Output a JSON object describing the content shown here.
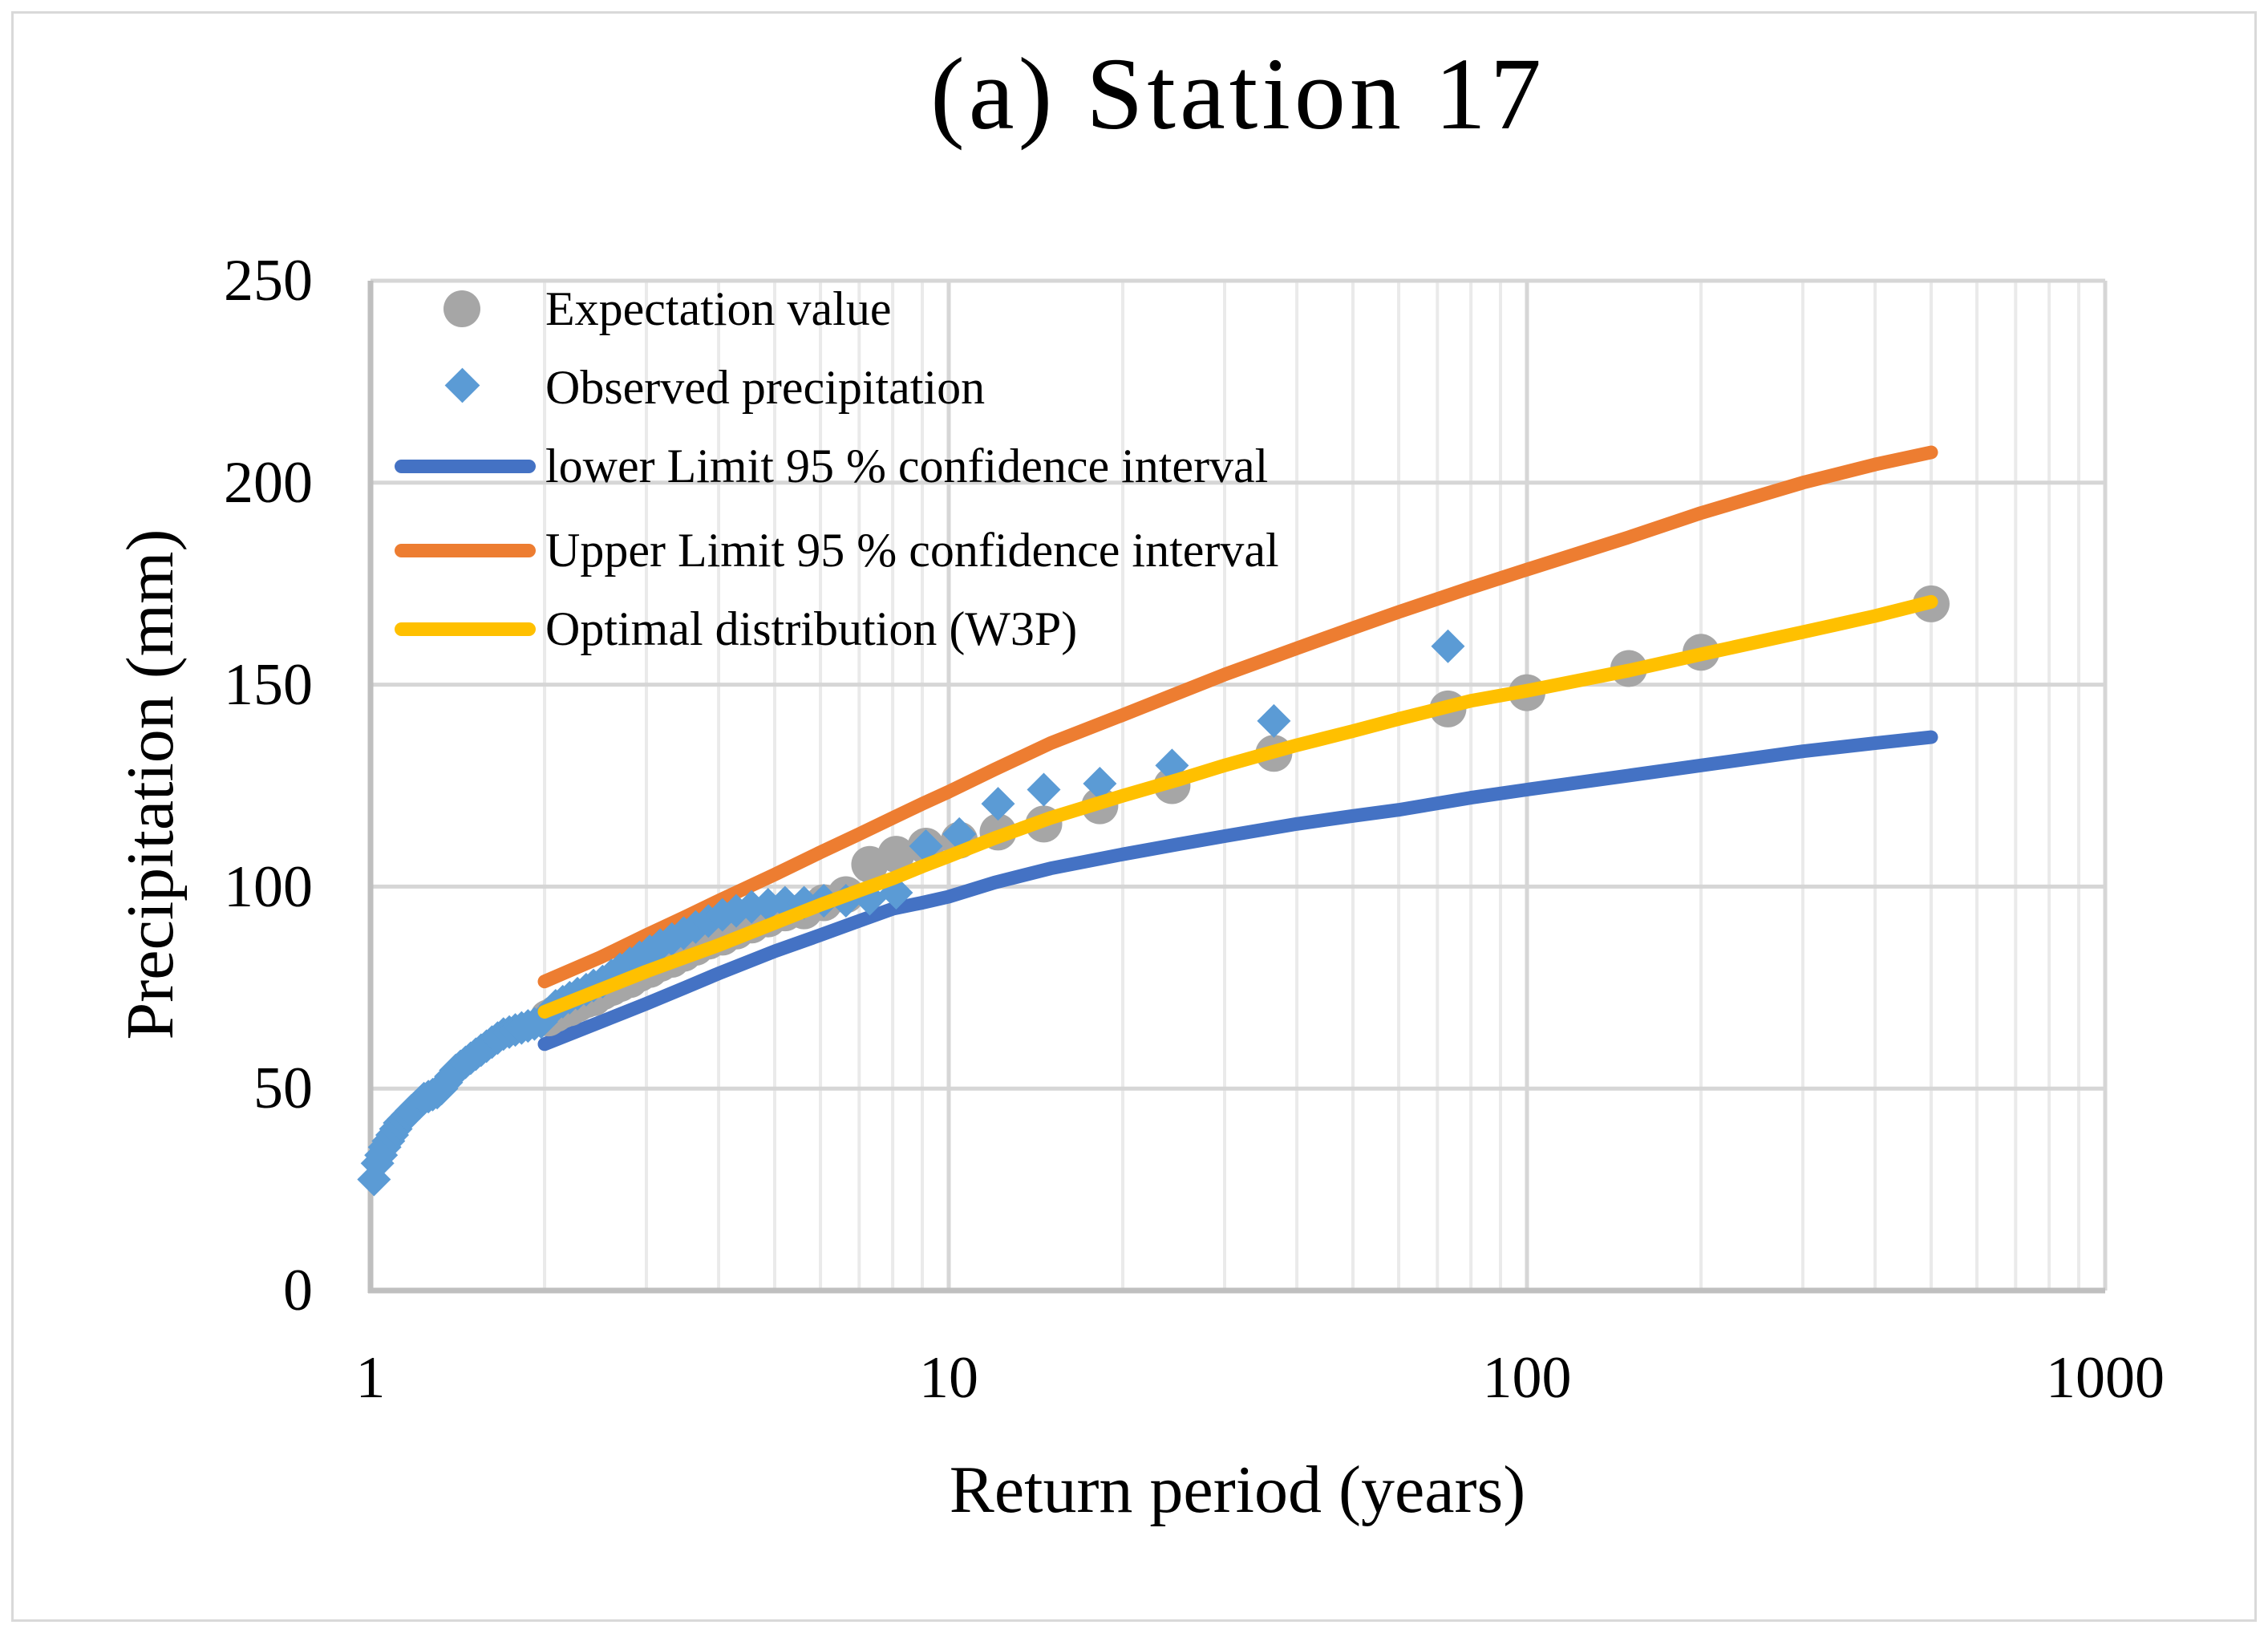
{
  "title": "(a) Station 17",
  "axes": {
    "x_label": "Return period (years)",
    "y_label": "Precipitation (mm)"
  },
  "legend": {
    "items": [
      {
        "label": "Expectation value",
        "marker": "circle",
        "color": "#A6A6A6"
      },
      {
        "label": "Observed precipitation",
        "marker": "diamond",
        "color": "#5B9BD5"
      },
      {
        "label": "lower Limit 95 % confidence interval",
        "marker": "line",
        "color": "#4472C4"
      },
      {
        "label": "Upper Limit 95 % confidence interval",
        "marker": "line",
        "color": "#ED7D31"
      },
      {
        "label": "Optimal distribution (W3P)",
        "marker": "line",
        "color": "#FFC000"
      }
    ]
  },
  "colors": {
    "grid_minor": "#EAEAEA",
    "grid_major": "#D6D6D6",
    "axis": "#BFBFBF",
    "text": "#000000"
  },
  "chart_data": {
    "type": "line",
    "title": "(a) Station 17",
    "xlabel": "Return period (years)",
    "ylabel": "Precipitation (mm)",
    "x_scale": "log",
    "xlim": [
      1,
      1000
    ],
    "ylim": [
      0,
      250
    ],
    "x_tick_labels": [
      "1",
      "10",
      "100",
      "1000"
    ],
    "y_tick_labels_desc": [
      "250",
      "200",
      "150",
      "100",
      "50",
      "0"
    ],
    "grid": "on",
    "legend_position": "upper-left-inside",
    "series": [
      {
        "name": "lower Limit 95 % confidence interval",
        "type": "line",
        "color": "#4472C4",
        "points": [
          [
            2,
            61
          ],
          [
            2.5,
            66.5
          ],
          [
            3,
            71
          ],
          [
            3.5,
            75
          ],
          [
            4,
            78.5
          ],
          [
            5,
            84
          ],
          [
            6,
            88
          ],
          [
            7,
            91.5
          ],
          [
            8,
            94.5
          ],
          [
            9,
            96
          ],
          [
            10,
            97.5
          ],
          [
            12,
            101
          ],
          [
            15,
            104.5
          ],
          [
            20,
            108
          ],
          [
            25,
            110.5
          ],
          [
            30,
            112.5
          ],
          [
            40,
            115.5
          ],
          [
            50,
            117.5
          ],
          [
            60,
            119
          ],
          [
            80,
            122
          ],
          [
            100,
            124
          ],
          [
            150,
            127.5
          ],
          [
            200,
            130
          ],
          [
            300,
            133.5
          ],
          [
            400,
            135.5
          ],
          [
            500,
            137
          ]
        ]
      },
      {
        "name": "Upper Limit 95 % confidence interval",
        "type": "line",
        "color": "#ED7D31",
        "points": [
          [
            2,
            76.5
          ],
          [
            2.5,
            82.5
          ],
          [
            3,
            88
          ],
          [
            3.5,
            92.5
          ],
          [
            4,
            96.5
          ],
          [
            5,
            103
          ],
          [
            6,
            108.5
          ],
          [
            7,
            113
          ],
          [
            8,
            117
          ],
          [
            9,
            120.5
          ],
          [
            10,
            123.5
          ],
          [
            12,
            129
          ],
          [
            15,
            135.5
          ],
          [
            20,
            142.5
          ],
          [
            25,
            148
          ],
          [
            30,
            152.5
          ],
          [
            40,
            159
          ],
          [
            50,
            164
          ],
          [
            60,
            168
          ],
          [
            80,
            174
          ],
          [
            100,
            178.5
          ],
          [
            150,
            186.5
          ],
          [
            200,
            192.5
          ],
          [
            300,
            200
          ],
          [
            400,
            204.5
          ],
          [
            500,
            207.5
          ]
        ]
      },
      {
        "name": "Expectation value",
        "type": "scatter",
        "marker": "circle",
        "color": "#A6A6A6",
        "points": [
          [
            2.03,
            67.5
          ],
          [
            2.09,
            68.5
          ],
          [
            2.15,
            69.5
          ],
          [
            2.21,
            70
          ],
          [
            2.28,
            71
          ],
          [
            2.36,
            72
          ],
          [
            2.43,
            72.5
          ],
          [
            2.52,
            74
          ],
          [
            2.61,
            75
          ],
          [
            2.7,
            76
          ],
          [
            2.81,
            77
          ],
          [
            2.92,
            78.5
          ],
          [
            3.04,
            79.5
          ],
          [
            3.17,
            81
          ],
          [
            3.32,
            82
          ],
          [
            3.48,
            83.5
          ],
          [
            3.65,
            85
          ],
          [
            3.84,
            86.5
          ],
          [
            4.06,
            87.5
          ],
          [
            4.29,
            89
          ],
          [
            4.56,
            90.5
          ],
          [
            4.87,
            92
          ],
          [
            5.21,
            93.5
          ],
          [
            5.62,
            94
          ],
          [
            6.08,
            96
          ],
          [
            6.64,
            98
          ],
          [
            7.3,
            105.5
          ],
          [
            8.11,
            108
          ],
          [
            9.13,
            110
          ],
          [
            10.43,
            111.5
          ],
          [
            12.17,
            113.5
          ],
          [
            14.6,
            115.5
          ],
          [
            18.25,
            120
          ],
          [
            24.33,
            125
          ],
          [
            36.5,
            133
          ],
          [
            73,
            144
          ],
          [
            100,
            148
          ],
          [
            150,
            154
          ],
          [
            200,
            158
          ],
          [
            500,
            170
          ]
        ]
      },
      {
        "name": "Observed precipitation",
        "type": "scatter",
        "marker": "diamond",
        "color": "#5B9BD5",
        "points": [
          [
            1.014,
            27.5
          ],
          [
            1.028,
            31.5
          ],
          [
            1.043,
            33.5
          ],
          [
            1.058,
            35.5
          ],
          [
            1.074,
            37
          ],
          [
            1.09,
            38.5
          ],
          [
            1.106,
            40
          ],
          [
            1.123,
            41.5
          ],
          [
            1.141,
            42.5
          ],
          [
            1.159,
            43.5
          ],
          [
            1.177,
            44.5
          ],
          [
            1.197,
            45.5
          ],
          [
            1.217,
            46.5
          ],
          [
            1.237,
            47.5
          ],
          [
            1.259,
            48
          ],
          [
            1.281,
            48.5
          ],
          [
            1.304,
            49
          ],
          [
            1.327,
            50
          ],
          [
            1.352,
            51.5
          ],
          [
            1.377,
            53
          ],
          [
            1.404,
            54.5
          ],
          [
            1.431,
            55.5
          ],
          [
            1.46,
            56.5
          ],
          [
            1.49,
            57.5
          ],
          [
            1.521,
            58.5
          ],
          [
            1.553,
            59.5
          ],
          [
            1.587,
            60.5
          ],
          [
            1.622,
            61.5
          ],
          [
            1.659,
            62.5
          ],
          [
            1.698,
            63.5
          ],
          [
            1.738,
            64
          ],
          [
            1.78,
            64.5
          ],
          [
            1.825,
            65
          ],
          [
            1.872,
            65.5
          ],
          [
            1.921,
            66
          ],
          [
            1.973,
            66.5
          ],
          [
            2.03,
            68.5
          ],
          [
            2.09,
            70.5
          ],
          [
            2.15,
            71.5
          ],
          [
            2.21,
            72.5
          ],
          [
            2.28,
            73.5
          ],
          [
            2.36,
            74.5
          ],
          [
            2.43,
            75.5
          ],
          [
            2.52,
            76.5
          ],
          [
            2.61,
            78
          ],
          [
            2.7,
            79.5
          ],
          [
            2.81,
            81
          ],
          [
            2.92,
            82.5
          ],
          [
            3.04,
            84
          ],
          [
            3.17,
            85.5
          ],
          [
            3.32,
            87
          ],
          [
            3.48,
            88.5
          ],
          [
            3.65,
            90
          ],
          [
            3.84,
            91.5
          ],
          [
            4.06,
            93
          ],
          [
            4.29,
            94
          ],
          [
            4.56,
            95
          ],
          [
            4.87,
            95.5
          ],
          [
            5.21,
            96
          ],
          [
            5.62,
            96
          ],
          [
            6.08,
            96.5
          ],
          [
            6.64,
            96.5
          ],
          [
            7.3,
            97
          ],
          [
            8.11,
            98.5
          ],
          [
            9.13,
            110
          ],
          [
            10.43,
            113
          ],
          [
            12.17,
            120.5
          ],
          [
            14.6,
            124
          ],
          [
            18.25,
            125.5
          ],
          [
            24.33,
            130
          ],
          [
            36.5,
            141
          ],
          [
            73,
            159.5
          ]
        ]
      },
      {
        "name": "Optimal distribution (W3P)",
        "type": "line",
        "color": "#FFC000",
        "points": [
          [
            2,
            69
          ],
          [
            2.5,
            74.5
          ],
          [
            3,
            79
          ],
          [
            3.5,
            82.5
          ],
          [
            4,
            85.5
          ],
          [
            5,
            91
          ],
          [
            6,
            95.5
          ],
          [
            7,
            99
          ],
          [
            8,
            102
          ],
          [
            9,
            105
          ],
          [
            10,
            107.5
          ],
          [
            12,
            112
          ],
          [
            15,
            117
          ],
          [
            20,
            122.5
          ],
          [
            25,
            126.5
          ],
          [
            30,
            130
          ],
          [
            40,
            135
          ],
          [
            50,
            138.5
          ],
          [
            60,
            141.5
          ],
          [
            80,
            146
          ],
          [
            100,
            148.5
          ],
          [
            150,
            153.5
          ],
          [
            200,
            157.5
          ],
          [
            300,
            163
          ],
          [
            400,
            167
          ],
          [
            500,
            170.5
          ]
        ]
      }
    ]
  }
}
